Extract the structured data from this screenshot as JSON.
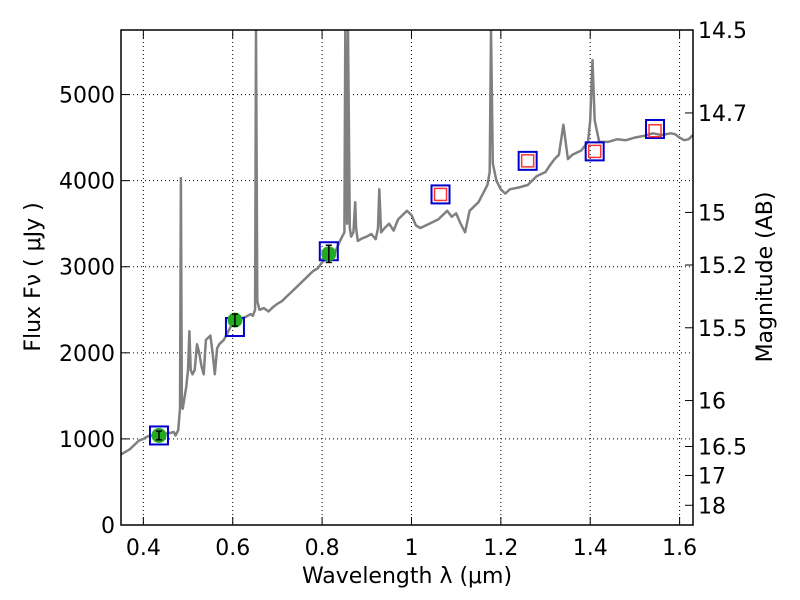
{
  "chart_data": {
    "type": "line",
    "title": "",
    "xlabel": "Wavelength  λ (μm)",
    "ylabel": "Flux  Fν  ( μJy )",
    "ylabel_right": "Magnitude (AB)",
    "xlim": [
      0.35,
      1.63
    ],
    "ylim": [
      0,
      5750
    ],
    "grid": true,
    "x_ticks": [
      0.4,
      0.6,
      0.8,
      1.0,
      1.2,
      1.4,
      1.6
    ],
    "x_tick_labels": [
      "0.4",
      "0.6",
      "0.8",
      "1",
      "1.2",
      "1.4",
      "1.6"
    ],
    "y_ticks": [
      0,
      1000,
      2000,
      3000,
      4000,
      5000
    ],
    "y_tick_labels": [
      "0",
      "1000",
      "2000",
      "3000",
      "4000",
      "5000"
    ],
    "right_ticks": [
      {
        "label": "14.5",
        "mag": 14.5
      },
      {
        "label": "14.7",
        "mag": 14.7
      },
      {
        "label": "15",
        "mag": 15.0
      },
      {
        "label": "15.2",
        "mag": 15.2
      },
      {
        "label": "15.5",
        "mag": 15.5
      },
      {
        "label": "16",
        "mag": 16.0
      },
      {
        "label": "16.5",
        "mag": 16.5
      },
      {
        "label": "17",
        "mag": 17.0
      },
      {
        "label": "18",
        "mag": 18.0
      }
    ],
    "series": [
      {
        "name": "spectrum",
        "kind": "line",
        "color": "#808080",
        "points": [
          [
            0.35,
            820
          ],
          [
            0.36,
            850
          ],
          [
            0.37,
            880
          ],
          [
            0.38,
            930
          ],
          [
            0.39,
            980
          ],
          [
            0.4,
            1000
          ],
          [
            0.41,
            1030
          ],
          [
            0.42,
            1040
          ],
          [
            0.43,
            1050
          ],
          [
            0.44,
            1070
          ],
          [
            0.45,
            1060
          ],
          [
            0.46,
            1070
          ],
          [
            0.468,
            1080
          ],
          [
            0.472,
            1040
          ],
          [
            0.478,
            1100
          ],
          [
            0.482,
            1350
          ],
          [
            0.484,
            4030
          ],
          [
            0.486,
            1500
          ],
          [
            0.488,
            1350
          ],
          [
            0.492,
            1480
          ],
          [
            0.496,
            1600
          ],
          [
            0.5,
            1800
          ],
          [
            0.503,
            2250
          ],
          [
            0.506,
            1800
          ],
          [
            0.51,
            1750
          ],
          [
            0.515,
            1800
          ],
          [
            0.52,
            2100
          ],
          [
            0.525,
            2000
          ],
          [
            0.53,
            1850
          ],
          [
            0.535,
            1750
          ],
          [
            0.54,
            2150
          ],
          [
            0.55,
            2200
          ],
          [
            0.555,
            2000
          ],
          [
            0.56,
            1750
          ],
          [
            0.565,
            2050
          ],
          [
            0.57,
            2100
          ],
          [
            0.58,
            2150
          ],
          [
            0.59,
            2250
          ],
          [
            0.6,
            2350
          ],
          [
            0.61,
            2350
          ],
          [
            0.62,
            2400
          ],
          [
            0.63,
            2420
          ],
          [
            0.64,
            2450
          ],
          [
            0.645,
            2430
          ],
          [
            0.65,
            2500
          ],
          [
            0.652,
            5750
          ],
          [
            0.655,
            2600
          ],
          [
            0.66,
            2500
          ],
          [
            0.67,
            2520
          ],
          [
            0.68,
            2480
          ],
          [
            0.69,
            2530
          ],
          [
            0.7,
            2570
          ],
          [
            0.71,
            2600
          ],
          [
            0.72,
            2650
          ],
          [
            0.73,
            2700
          ],
          [
            0.74,
            2750
          ],
          [
            0.75,
            2800
          ],
          [
            0.76,
            2850
          ],
          [
            0.77,
            2900
          ],
          [
            0.78,
            2950
          ],
          [
            0.79,
            2980
          ],
          [
            0.8,
            3050
          ],
          [
            0.81,
            3100
          ],
          [
            0.82,
            3150
          ],
          [
            0.83,
            3180
          ],
          [
            0.84,
            3300
          ],
          [
            0.845,
            3350
          ],
          [
            0.85,
            3400
          ],
          [
            0.852,
            5750
          ],
          [
            0.856,
            3500
          ],
          [
            0.858,
            5750
          ],
          [
            0.862,
            3450
          ],
          [
            0.865,
            3350
          ],
          [
            0.87,
            3400
          ],
          [
            0.874,
            3750
          ],
          [
            0.876,
            3450
          ],
          [
            0.88,
            3300
          ],
          [
            0.89,
            3330
          ],
          [
            0.9,
            3350
          ],
          [
            0.91,
            3380
          ],
          [
            0.92,
            3320
          ],
          [
            0.925,
            3450
          ],
          [
            0.928,
            3900
          ],
          [
            0.932,
            3400
          ],
          [
            0.94,
            3450
          ],
          [
            0.95,
            3500
          ],
          [
            0.96,
            3420
          ],
          [
            0.97,
            3550
          ],
          [
            0.98,
            3600
          ],
          [
            0.99,
            3650
          ],
          [
            1.0,
            3600
          ],
          [
            1.01,
            3480
          ],
          [
            1.02,
            3450
          ],
          [
            1.04,
            3500
          ],
          [
            1.06,
            3550
          ],
          [
            1.08,
            3650
          ],
          [
            1.09,
            3580
          ],
          [
            1.1,
            3620
          ],
          [
            1.11,
            3500
          ],
          [
            1.12,
            3400
          ],
          [
            1.13,
            3650
          ],
          [
            1.14,
            3700
          ],
          [
            1.15,
            3750
          ],
          [
            1.16,
            3850
          ],
          [
            1.17,
            3950
          ],
          [
            1.175,
            4100
          ],
          [
            1.178,
            5750
          ],
          [
            1.182,
            4200
          ],
          [
            1.19,
            4000
          ],
          [
            1.2,
            3900
          ],
          [
            1.21,
            3850
          ],
          [
            1.22,
            3900
          ],
          [
            1.24,
            3920
          ],
          [
            1.26,
            3950
          ],
          [
            1.28,
            4050
          ],
          [
            1.3,
            4100
          ],
          [
            1.31,
            4180
          ],
          [
            1.32,
            4250
          ],
          [
            1.33,
            4300
          ],
          [
            1.34,
            4650
          ],
          [
            1.35,
            4250
          ],
          [
            1.36,
            4300
          ],
          [
            1.38,
            4350
          ],
          [
            1.395,
            4450
          ],
          [
            1.4,
            4700
          ],
          [
            1.405,
            5400
          ],
          [
            1.41,
            4700
          ],
          [
            1.42,
            4450
          ],
          [
            1.44,
            4450
          ],
          [
            1.46,
            4480
          ],
          [
            1.48,
            4470
          ],
          [
            1.5,
            4500
          ],
          [
            1.52,
            4520
          ],
          [
            1.54,
            4550
          ],
          [
            1.56,
            4530
          ],
          [
            1.58,
            4550
          ],
          [
            1.59,
            4540
          ],
          [
            1.6,
            4500
          ],
          [
            1.61,
            4470
          ],
          [
            1.62,
            4480
          ],
          [
            1.63,
            4530
          ]
        ]
      },
      {
        "name": "model photometry",
        "kind": "square",
        "color": "#0000cc",
        "points": [
          [
            0.435,
            1040
          ],
          [
            0.605,
            2300
          ],
          [
            0.815,
            3180
          ],
          [
            1.065,
            3840
          ],
          [
            1.26,
            4230
          ],
          [
            1.41,
            4340
          ],
          [
            1.545,
            4600
          ]
        ]
      },
      {
        "name": "observed optical",
        "kind": "circle",
        "color": "#22aa22",
        "points": [
          {
            "x": 0.435,
            "y": 1040,
            "err": 50
          },
          {
            "x": 0.605,
            "y": 2380,
            "err": 70
          },
          {
            "x": 0.815,
            "y": 3150,
            "err": 100
          }
        ]
      },
      {
        "name": "observed NIR",
        "kind": "open-square",
        "color": "#ff3333",
        "points": [
          [
            1.065,
            3840
          ],
          [
            1.26,
            4230
          ],
          [
            1.41,
            4340
          ],
          [
            1.545,
            4580
          ]
        ]
      }
    ]
  }
}
